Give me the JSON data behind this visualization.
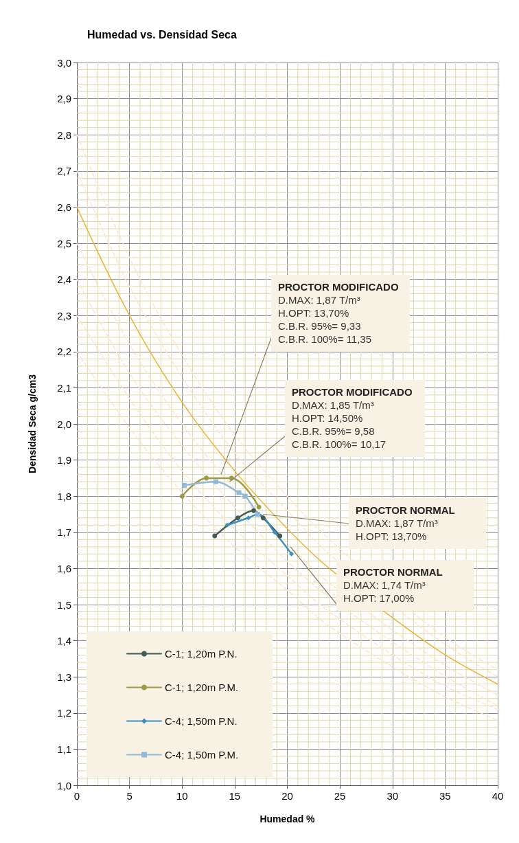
{
  "chart_data": {
    "type": "line",
    "title": "Humedad vs. Densidad Seca",
    "xlabel": "Humedad %",
    "ylabel": "Densidad Seca g/cm3",
    "xlim": [
      0,
      40
    ],
    "xticks": [
      0,
      {
        "value": 1,
        "label": null
      },
      {
        "value": 2,
        "label": null
      },
      {
        "value": 3,
        "label": null
      },
      {
        "value": 4,
        "label": null
      },
      5,
      {
        "value": 6,
        "label": null
      },
      {
        "value": 7,
        "label": null
      },
      {
        "value": 8,
        "label": null
      },
      {
        "value": 9,
        "label": null
      },
      10,
      {
        "value": 11,
        "label": null
      },
      {
        "value": 12,
        "label": null
      },
      {
        "value": 13,
        "label": null
      },
      {
        "value": 14,
        "label": null
      },
      15,
      {
        "value": 16,
        "label": null
      },
      {
        "value": 17,
        "label": null
      },
      {
        "value": 18,
        "label": null
      },
      {
        "value": 19,
        "label": null
      },
      20,
      {
        "value": 21,
        "label": null
      },
      {
        "value": 22,
        "label": null
      },
      {
        "value": 23,
        "label": null
      },
      {
        "value": 24,
        "label": null
      },
      25,
      {
        "value": 26,
        "label": null
      },
      {
        "value": 27,
        "label": null
      },
      {
        "value": 28,
        "label": null
      },
      {
        "value": 29,
        "label": null
      },
      30,
      {
        "value": 31,
        "label": null
      },
      {
        "value": 32,
        "label": null
      },
      {
        "value": 33,
        "label": null
      },
      {
        "value": 34,
        "label": null
      },
      35,
      {
        "value": 36,
        "label": null
      },
      {
        "value": 37,
        "label": null
      },
      {
        "value": 38,
        "label": null
      },
      {
        "value": 39,
        "label": null
      },
      40
    ],
    "ylim": [
      1.0,
      3.0
    ],
    "yticks": [
      {
        "value": 1.0,
        "label": "1,0"
      },
      {
        "value": 1.02,
        "label": null
      },
      {
        "value": 1.04,
        "label": null
      },
      {
        "value": 1.06,
        "label": null
      },
      {
        "value": 1.08,
        "label": null
      },
      {
        "value": 1.1,
        "label": "1,1"
      },
      {
        "value": 1.12,
        "label": null
      },
      {
        "value": 1.14,
        "label": null
      },
      {
        "value": 1.16,
        "label": null
      },
      {
        "value": 1.18,
        "label": null
      },
      {
        "value": 1.2,
        "label": "1,2"
      },
      {
        "value": 1.22,
        "label": null
      },
      {
        "value": 1.24,
        "label": null
      },
      {
        "value": 1.26,
        "label": null
      },
      {
        "value": 1.28,
        "label": null
      },
      {
        "value": 1.3,
        "label": "1,3"
      },
      {
        "value": 1.32,
        "label": null
      },
      {
        "value": 1.34,
        "label": null
      },
      {
        "value": 1.36,
        "label": null
      },
      {
        "value": 1.38,
        "label": null
      },
      {
        "value": 1.4,
        "label": "1,4"
      },
      {
        "value": 1.42,
        "label": null
      },
      {
        "value": 1.44,
        "label": null
      },
      {
        "value": 1.46,
        "label": null
      },
      {
        "value": 1.48,
        "label": null
      },
      {
        "value": 1.5,
        "label": "1,5"
      },
      {
        "value": 1.52,
        "label": null
      },
      {
        "value": 1.54,
        "label": null
      },
      {
        "value": 1.56,
        "label": null
      },
      {
        "value": 1.58,
        "label": null
      },
      {
        "value": 1.6,
        "label": "1,6"
      },
      {
        "value": 1.62,
        "label": null
      },
      {
        "value": 1.64,
        "label": null
      },
      {
        "value": 1.66,
        "label": null
      },
      {
        "value": 1.68,
        "label": null
      },
      {
        "value": 1.7,
        "label": "1,7"
      },
      {
        "value": 1.72,
        "label": null
      },
      {
        "value": 1.74,
        "label": null
      },
      {
        "value": 1.76,
        "label": null
      },
      {
        "value": 1.78,
        "label": null
      },
      {
        "value": 1.8,
        "label": "1,8"
      },
      {
        "value": 1.82,
        "label": null
      },
      {
        "value": 1.84,
        "label": null
      },
      {
        "value": 1.86,
        "label": null
      },
      {
        "value": 1.88,
        "label": null
      },
      {
        "value": 1.9,
        "label": "1,9"
      },
      {
        "value": 1.92,
        "label": null
      },
      {
        "value": 1.94,
        "label": null
      },
      {
        "value": 1.96,
        "label": null
      },
      {
        "value": 1.98,
        "label": null
      },
      {
        "value": 2.0,
        "label": "2,0"
      },
      {
        "value": 2.02,
        "label": null
      },
      {
        "value": 2.04,
        "label": null
      },
      {
        "value": 2.06,
        "label": null
      },
      {
        "value": 2.08,
        "label": null
      },
      {
        "value": 2.1,
        "label": "2,1"
      },
      {
        "value": 2.12,
        "label": null
      },
      {
        "value": 2.14,
        "label": null
      },
      {
        "value": 2.16,
        "label": null
      },
      {
        "value": 2.18,
        "label": null
      },
      {
        "value": 2.2,
        "label": "2,2"
      },
      {
        "value": 2.22,
        "label": null
      },
      {
        "value": 2.24,
        "label": null
      },
      {
        "value": 2.26,
        "label": null
      },
      {
        "value": 2.28,
        "label": null
      },
      {
        "value": 2.3,
        "label": "2,3"
      },
      {
        "value": 2.32,
        "label": null
      },
      {
        "value": 2.34,
        "label": null
      },
      {
        "value": 2.36,
        "label": null
      },
      {
        "value": 2.38,
        "label": null
      },
      {
        "value": 2.4,
        "label": "2,4"
      },
      {
        "value": 2.42,
        "label": null
      },
      {
        "value": 2.44,
        "label": null
      },
      {
        "value": 2.46,
        "label": null
      },
      {
        "value": 2.48,
        "label": null
      },
      {
        "value": 2.5,
        "label": "2,5"
      },
      {
        "value": 2.52,
        "label": null
      },
      {
        "value": 2.54,
        "label": null
      },
      {
        "value": 2.56,
        "label": null
      },
      {
        "value": 2.58,
        "label": null
      },
      {
        "value": 2.6,
        "label": "2,6"
      },
      {
        "value": 2.62,
        "label": null
      },
      {
        "value": 2.64,
        "label": null
      },
      {
        "value": 2.66,
        "label": null
      },
      {
        "value": 2.68,
        "label": null
      },
      {
        "value": 2.7,
        "label": "2,7"
      },
      {
        "value": 2.72,
        "label": null
      },
      {
        "value": 2.74,
        "label": null
      },
      {
        "value": 2.76,
        "label": null
      },
      {
        "value": 2.78,
        "label": null
      },
      {
        "value": 2.8,
        "label": "2,8"
      },
      {
        "value": 2.82,
        "label": null
      },
      {
        "value": 2.84,
        "label": null
      },
      {
        "value": 2.86,
        "label": null
      },
      {
        "value": 2.88,
        "label": null
      },
      {
        "value": 2.9,
        "label": "2,9"
      },
      {
        "value": 2.92,
        "label": null
      },
      {
        "value": 2.94,
        "label": null
      },
      {
        "value": 2.96,
        "label": null
      },
      {
        "value": 2.98,
        "label": null
      },
      {
        "value": 3.0,
        "label": "3,0"
      }
    ],
    "grid": true,
    "legend": "bottom left",
    "series": [
      {
        "color": "#fbe6cc",
        "line_style": "dashed",
        "marker": "none",
        "x": [
          0,
          5,
          10,
          15,
          20,
          24,
          34,
          40
        ],
        "values": [
          2.8,
          2.46,
          2.19,
          1.97,
          1.8,
          1.68,
          1.43,
          1.32
        ]
      },
      {
        "color": "#fbe6cc",
        "line_style": "dashed",
        "marker": "none",
        "x": [
          0,
          5,
          10,
          15,
          20,
          24,
          34,
          40
        ],
        "values": [
          2.7,
          2.38,
          2.13,
          1.92,
          1.76,
          1.64,
          1.41,
          1.3
        ]
      },
      {
        "color": "#f0b236",
        "line_style": "solid",
        "marker": "none",
        "x": [
          0,
          5,
          10,
          15,
          20,
          24,
          34,
          40
        ],
        "values": [
          2.6,
          2.3,
          2.06,
          1.87,
          1.71,
          1.6,
          1.38,
          1.28
        ]
      },
      {
        "color": "#fbe6cc",
        "line_style": "dashed",
        "marker": "none",
        "x": [
          0,
          5,
          10,
          15,
          20,
          24,
          34,
          40
        ],
        "values": [
          2.5,
          2.22,
          2.0,
          1.82,
          1.67,
          1.56,
          1.35,
          1.25
        ]
      },
      {
        "color": "#fbe6cc",
        "line_style": "dashed",
        "marker": "none",
        "x": [
          0,
          5,
          10,
          15,
          20,
          24,
          34,
          40
        ],
        "values": [
          2.4,
          2.14,
          1.94,
          1.77,
          1.62,
          1.52,
          1.32,
          1.22
        ]
      },
      {
        "color": "#fbe6cc",
        "line_style": "dashed",
        "marker": "none",
        "x": [
          0,
          5,
          10,
          15,
          20,
          24,
          34,
          40
        ],
        "values": [
          2.3,
          2.07,
          1.87,
          1.71,
          1.58,
          1.48,
          1.29,
          1.21
        ]
      },
      {
        "color": "#fbe6cc",
        "line_style": "dashed",
        "marker": "none",
        "x": [
          0,
          5,
          10,
          15,
          20,
          24,
          34,
          40
        ],
        "values": [
          2.2,
          1.99,
          1.81,
          1.66,
          1.54,
          1.44,
          1.26,
          1.18
        ]
      },
      {
        "name": "C-1; 1,20m P.N.",
        "color": "#435a52",
        "line_style": "solid",
        "marker": "circle",
        "x": [
          13.1,
          15.3,
          16.8,
          17.7,
          19.3
        ],
        "values": [
          1.69,
          1.74,
          1.76,
          1.74,
          1.69
        ]
      },
      {
        "name": "C-1; 1,20m P.M.",
        "color": "#9e9a48",
        "line_style": "solid",
        "marker": "circle",
        "x": [
          10.0,
          12.3,
          14.7,
          17.3
        ],
        "values": [
          1.8,
          1.85,
          1.85,
          1.77
        ]
      },
      {
        "name": "C-4; 1,50m P.N.",
        "color": "#3a8fc0",
        "line_style": "solid",
        "marker": "diamond",
        "x": [
          14.3,
          16.3,
          17.2,
          18.8,
          20.4
        ],
        "values": [
          1.72,
          1.74,
          1.75,
          1.7,
          1.64
        ]
      },
      {
        "name": "C-4; 1,50m P.M.",
        "color": "#93b9d9",
        "line_style": "solid",
        "marker": "square",
        "x": [
          10.2,
          13.2,
          15.4,
          16.0,
          17.2
        ],
        "values": [
          1.83,
          1.84,
          1.81,
          1.8,
          1.75
        ]
      }
    ],
    "annotations": [
      {
        "text": "PROCTOR MODIFICADO\nD.MAX: 1,87 T/m³\nH.OPT: 13,70%\nC.B.R. 95%= 9,33\nC.B.R. 100%= 11,35",
        "x": 13.7,
        "y": 1.86
      },
      {
        "text": "PROCTOR MODIFICADO\nD.MAX: 1,85 T/m³\nH.OPT: 14,50%\nC.B.R. 95%= 9,58\nC.B.R. 100%= 10,17",
        "x": 14.5,
        "y": 1.84
      },
      {
        "text": "PROCTOR NORMAL\nD.MAX: 1,87 T/m³\nH.OPT: 13,70%",
        "x": 17.7,
        "y": 1.75
      },
      {
        "text": "PROCTOR NORMAL\nD.MAX: 1,74 T/m³\nH.OPT: 17,00%",
        "x": 20.3,
        "y": 1.66
      }
    ]
  }
}
